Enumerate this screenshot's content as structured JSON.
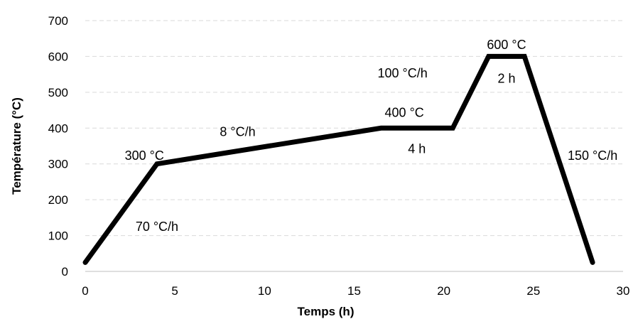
{
  "chart_data": {
    "type": "line",
    "xlabel": "Temps (h)",
    "ylabel": "Température (°C)",
    "xlim": [
      0,
      30
    ],
    "ylim": [
      0,
      700
    ],
    "x_ticks": [
      0,
      5,
      10,
      15,
      20,
      25,
      30
    ],
    "y_ticks": [
      0,
      100,
      200,
      300,
      400,
      500,
      600,
      700
    ],
    "grid": "horizontal dashed",
    "series": [
      {
        "color": "#000000",
        "x": [
          0,
          4,
          16.5,
          20.5,
          22.5,
          24.5,
          28.3
        ],
        "y": [
          25,
          300,
          400,
          400,
          600,
          600,
          25
        ]
      }
    ],
    "annotations": [
      {
        "text": "300 °C",
        "x": 3.3,
        "y": 323
      },
      {
        "text": "70 °C/h",
        "x": 4.0,
        "y": 125
      },
      {
        "text": "8 °C/h",
        "x": 8.5,
        "y": 390
      },
      {
        "text": "400 °C",
        "x": 17.8,
        "y": 443
      },
      {
        "text": "4 h",
        "x": 18.5,
        "y": 342
      },
      {
        "text": "100 °C/h",
        "x": 17.7,
        "y": 553
      },
      {
        "text": "600 °C",
        "x": 23.5,
        "y": 633
      },
      {
        "text": "2 h",
        "x": 23.5,
        "y": 538
      },
      {
        "text": "150 °C/h",
        "x": 28.3,
        "y": 323
      }
    ]
  }
}
